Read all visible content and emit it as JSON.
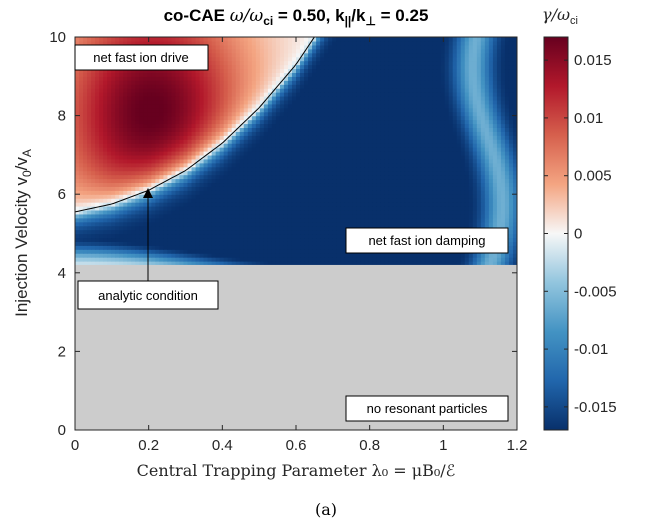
{
  "chart_data": {
    "type": "heatmap",
    "title": "co-CAE ω/ω_ci = 0.50, k_||/k_⊥ = 0.25",
    "title_parts": {
      "prefix": "co-CAE ",
      "omega": "ω",
      "slash": "/",
      "omega_ci_base": "ω",
      "omega_ci_sub": "ci",
      "mid": " = 0.50, k",
      "kpar_sub": "||",
      "kslash": "/k",
      "kperp_sub": "⊥",
      "end": " = 0.25"
    },
    "xlabel": "Central Trapping Parameter λ₀ = μB₀/ℰ",
    "ylabel": "Injection Velocity v₀/v_A",
    "ylabel_parts": {
      "prefix": "Injection Velocity v",
      "sub0": "0",
      "mid": "/v",
      "subA": "A"
    },
    "xlim": [
      0,
      1.2
    ],
    "ylim": [
      0,
      10
    ],
    "x_ticks": [
      "0",
      "0.2",
      "0.4",
      "0.6",
      "0.8",
      "1",
      "1.2"
    ],
    "x_tick_values": [
      0,
      0.2,
      0.4,
      0.6,
      0.8,
      1.0,
      1.2
    ],
    "y_ticks": [
      "0",
      "2",
      "4",
      "6",
      "8",
      "10"
    ],
    "y_tick_values": [
      0,
      2,
      4,
      6,
      8,
      10
    ],
    "colorbar": {
      "label": "γ/ω_ci",
      "label_parts": {
        "base": "γ/ω",
        "sub": "ci"
      },
      "min": -0.017,
      "max": 0.017,
      "ticks": [
        "0.015",
        "0.01",
        "0.005",
        "0",
        "-0.005",
        "-0.01",
        "-0.015"
      ],
      "tick_values": [
        0.015,
        0.01,
        0.005,
        0,
        -0.005,
        -0.01,
        -0.015
      ],
      "colormap": [
        "#08306b",
        "#2166ac",
        "#4393c3",
        "#92c5de",
        "#f7f7f7",
        "#f4a582",
        "#d6604d",
        "#b2182b",
        "#67001f"
      ]
    },
    "regions": {
      "no_resonance_below_v0": 4.2,
      "no_resonance_color": "#cccccc"
    },
    "analytic_curve": {
      "x": [
        0,
        0.1,
        0.2,
        0.3,
        0.4,
        0.5,
        0.6,
        0.65
      ],
      "y": [
        5.55,
        5.75,
        6.1,
        6.6,
        7.3,
        8.2,
        9.3,
        10.0
      ]
    },
    "annotations": [
      {
        "text": "net fast ion drive",
        "x": 0.14,
        "y": 9.5
      },
      {
        "text": "net fast ion damping",
        "x": 1.01,
        "y": 4.8
      },
      {
        "text": "no resonant particles",
        "x": 1.01,
        "y": 0.55
      },
      {
        "text": "analytic condition",
        "x": 0.2,
        "y": 3.5,
        "arrow_to": [
          0.2,
          6.05
        ]
      }
    ],
    "grid": false
  },
  "caption": "(a)"
}
